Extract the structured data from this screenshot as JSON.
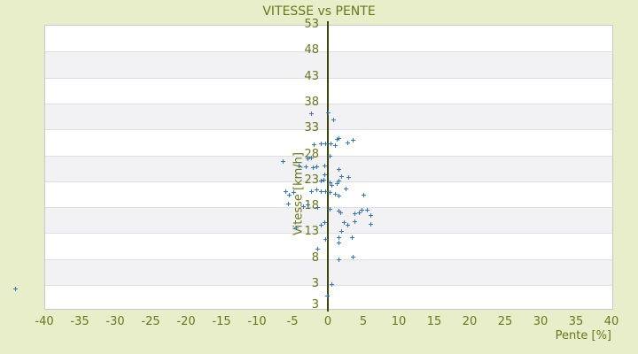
{
  "chart_data": {
    "type": "scatter",
    "title": "VITESSE vs PENTE",
    "xlabel": "Pente [%]",
    "ylabel": "Vitesse [km/h]",
    "xlim": [
      -40,
      40
    ],
    "ylim": [
      -1.6,
      53
    ],
    "x_ticks": [
      -40,
      -35,
      -30,
      -25,
      -20,
      -15,
      -10,
      -5,
      0,
      5,
      10,
      15,
      20,
      25,
      30,
      35,
      40
    ],
    "y_ticks": [
      53,
      48,
      43,
      38,
      33,
      28,
      23,
      18,
      13,
      8,
      3
    ],
    "y_axis_bottom_label": "3",
    "grid": "alternating-horizontal-bands",
    "legend": "none",
    "marker": "plus",
    "colors": {
      "background": "#e8eec9",
      "text": "#6a761b",
      "zero_axis": "#3c470e",
      "band_gray": "#f2f2f4",
      "band_white": "#ffffff",
      "gridline": "#dcdde5",
      "marker": "#3577b8"
    },
    "points": [
      [
        -2.3,
        35.8
      ],
      [
        0.1,
        36.0
      ],
      [
        0.8,
        34.6
      ],
      [
        1.3,
        30.9
      ],
      [
        1.6,
        31.1
      ],
      [
        -0.9,
        30.0
      ],
      [
        -0.3,
        30.0
      ],
      [
        0.4,
        30.0
      ],
      [
        1.0,
        29.7
      ],
      [
        2.8,
        30.2
      ],
      [
        3.5,
        30.7
      ],
      [
        -1.9,
        29.9
      ],
      [
        0.3,
        27.7
      ],
      [
        -2.8,
        27.2
      ],
      [
        -2.3,
        27.3
      ],
      [
        -4.1,
        25.8
      ],
      [
        -6.3,
        26.6
      ],
      [
        -0.4,
        25.8
      ],
      [
        -3.1,
        25.6
      ],
      [
        -2.1,
        25.5
      ],
      [
        -1.6,
        25.6
      ],
      [
        1.5,
        25.1
      ],
      [
        2.9,
        23.6
      ],
      [
        -0.4,
        24.1
      ],
      [
        -1.0,
        22.9
      ],
      [
        -0.6,
        23.1
      ],
      [
        0.3,
        22.6
      ],
      [
        0.6,
        22.1
      ],
      [
        1.3,
        22.4
      ],
      [
        1.5,
        22.9
      ],
      [
        1.9,
        23.8
      ],
      [
        -2.3,
        20.9
      ],
      [
        -1.6,
        21.2
      ],
      [
        -1.0,
        20.9
      ],
      [
        -0.3,
        20.9
      ],
      [
        0.3,
        20.7
      ],
      [
        1.0,
        20.4
      ],
      [
        1.5,
        20.0
      ],
      [
        -5.9,
        20.9
      ],
      [
        -5.4,
        20.2
      ],
      [
        -4.8,
        20.7
      ],
      [
        2.5,
        21.4
      ],
      [
        5.0,
        20.2
      ],
      [
        -3.4,
        18.0
      ],
      [
        -2.8,
        18.2
      ],
      [
        -1.5,
        17.8
      ],
      [
        0.3,
        17.5
      ],
      [
        1.6,
        17.0
      ],
      [
        3.8,
        16.5
      ],
      [
        4.8,
        17.3
      ],
      [
        5.5,
        17.3
      ],
      [
        -5.6,
        18.4
      ],
      [
        1.8,
        16.7
      ],
      [
        4.4,
        16.8
      ],
      [
        6.1,
        16.3
      ],
      [
        -4.4,
        13.9
      ],
      [
        -0.9,
        14.4
      ],
      [
        -0.4,
        14.9
      ],
      [
        2.3,
        14.8
      ],
      [
        2.8,
        14.4
      ],
      [
        1.9,
        13.1
      ],
      [
        6.0,
        14.6
      ],
      [
        3.8,
        15.1
      ],
      [
        -0.3,
        11.6
      ],
      [
        1.6,
        11.9
      ],
      [
        1.6,
        10.9
      ],
      [
        3.4,
        11.9
      ],
      [
        -1.5,
        9.7
      ],
      [
        1.5,
        7.7
      ],
      [
        3.6,
        8.2
      ],
      [
        0.6,
        2.9
      ],
      [
        -0.1,
        0.7
      ],
      [
        -44.1,
        2.0
      ]
    ]
  }
}
